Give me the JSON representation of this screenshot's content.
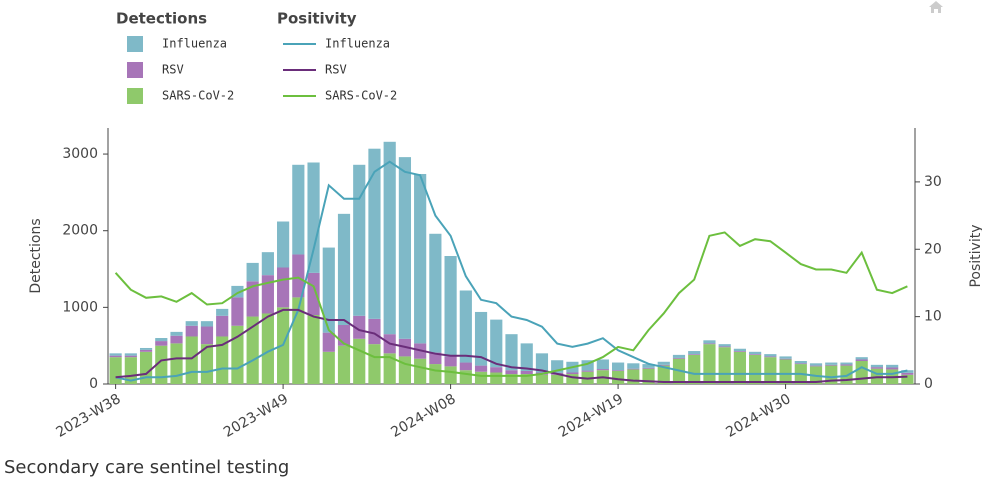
{
  "chart_data": {
    "type": "bar_line",
    "caption": "Secondary care sentinel testing",
    "legend_groups": [
      "Detections",
      "Positivity"
    ],
    "ylabel": "Detections",
    "y2label": "Positivity",
    "ylim": [
      0,
      3340
    ],
    "yticks": [
      0,
      1000,
      2000,
      3000
    ],
    "y2lim": [
      0,
      38
    ],
    "y2ticks": [
      0,
      10,
      20,
      30
    ],
    "categories": [
      "2023-W38",
      null,
      null,
      null,
      null,
      null,
      null,
      null,
      null,
      null,
      null,
      "2023-W49",
      null,
      null,
      null,
      null,
      null,
      null,
      null,
      null,
      null,
      null,
      "2024-W08",
      null,
      null,
      null,
      null,
      null,
      null,
      null,
      null,
      null,
      null,
      "2024-W19",
      null,
      null,
      null,
      null,
      null,
      null,
      null,
      null,
      null,
      null,
      "2024-W30",
      null,
      null,
      null,
      null,
      null,
      null,
      null,
      null
    ],
    "series": [
      {
        "name": "Influenza",
        "kind": "bar",
        "color": "#7fb9c8",
        "values": [
          30,
          30,
          25,
          40,
          50,
          60,
          70,
          90,
          150,
          240,
          300,
          600,
          1170,
          1440,
          1110,
          1450,
          1970,
          2220,
          2510,
          2370,
          2210,
          1550,
          1310,
          940,
          700,
          620,
          470,
          360,
          250,
          165,
          140,
          135,
          125,
          100,
          70,
          50,
          40,
          40,
          40,
          40,
          30,
          30,
          30,
          30,
          30,
          30,
          30,
          30,
          25,
          30,
          30,
          35,
          35
        ]
      },
      {
        "name": "RSV",
        "kind": "bar",
        "color": "#a775b8",
        "values": [
          20,
          20,
          25,
          60,
          100,
          140,
          230,
          270,
          370,
          460,
          500,
          520,
          560,
          550,
          250,
          270,
          300,
          330,
          250,
          230,
          200,
          150,
          130,
          100,
          80,
          70,
          50,
          40,
          30,
          25,
          20,
          15,
          15,
          10,
          10,
          10,
          10,
          10,
          10,
          10,
          10,
          10,
          10,
          10,
          10,
          10,
          10,
          10,
          15,
          20,
          20,
          25,
          25
        ]
      },
      {
        "name": "SARS-CoV-2",
        "kind": "bar",
        "color": "#8fc96b",
        "values": [
          350,
          350,
          420,
          500,
          530,
          620,
          520,
          620,
          760,
          880,
          920,
          1000,
          1130,
          900,
          420,
          500,
          590,
          520,
          400,
          360,
          330,
          260,
          230,
          180,
          160,
          150,
          130,
          130,
          120,
          120,
          130,
          160,
          180,
          170,
          190,
          200,
          240,
          330,
          380,
          520,
          480,
          420,
          380,
          350,
          320,
          260,
          230,
          240,
          240,
          300,
          200,
          190,
          120
        ]
      },
      {
        "name": "Influenza",
        "kind": "line",
        "axis": "y2",
        "color": "#4aa3b8",
        "values": [
          1.0,
          0.5,
          1.0,
          1.0,
          1.2,
          1.8,
          1.8,
          2.3,
          2.3,
          3.5,
          4.8,
          5.8,
          11,
          20,
          29.5,
          27.5,
          27.5,
          31.5,
          33,
          31.5,
          31,
          25,
          22,
          16,
          12.5,
          12,
          10,
          9.5,
          8.5,
          6,
          5.5,
          6,
          6.8,
          5,
          4,
          3,
          2.5,
          2,
          1.5,
          1.5,
          1.5,
          1.5,
          1.5,
          1.5,
          1.5,
          1.5,
          1.2,
          1.0,
          1.2,
          2.5,
          1.5,
          1.5,
          2.0
        ]
      },
      {
        "name": "RSV",
        "kind": "line",
        "axis": "y2",
        "color": "#6a2d7a",
        "values": [
          1,
          1.2,
          1.5,
          3.5,
          3.8,
          3.8,
          5.5,
          5.8,
          7,
          8.5,
          10,
          11,
          11,
          10,
          9.5,
          9.5,
          8,
          7.5,
          6,
          5.5,
          5,
          4.5,
          4.2,
          4.2,
          4,
          3,
          2.5,
          2.3,
          2,
          1.5,
          1,
          0.8,
          1.0,
          0.7,
          0.5,
          0.4,
          0.3,
          0.3,
          0.3,
          0.3,
          0.3,
          0.3,
          0.3,
          0.3,
          0.3,
          0.3,
          0.3,
          0.5,
          0.6,
          0.8,
          1.0,
          1.0,
          1.1
        ]
      },
      {
        "name": "SARS-CoV-2",
        "kind": "line",
        "axis": "y2",
        "color": "#6cbf3e",
        "values": [
          16.5,
          14,
          12.8,
          13,
          12.2,
          13.5,
          11.8,
          12,
          13.5,
          14.5,
          15,
          15.5,
          15.8,
          14.5,
          8,
          6,
          5,
          4,
          4,
          3,
          2.5,
          2,
          1.8,
          1.5,
          1.2,
          1.2,
          1.2,
          1.2,
          1.5,
          2,
          2.5,
          3,
          4,
          5.5,
          5,
          8,
          10.5,
          13.5,
          15.5,
          22,
          22.5,
          20.5,
          21.5,
          21.2,
          19.5,
          17.8,
          17,
          17,
          16.5,
          19.5,
          14,
          13.5,
          14.5
        ]
      }
    ]
  }
}
